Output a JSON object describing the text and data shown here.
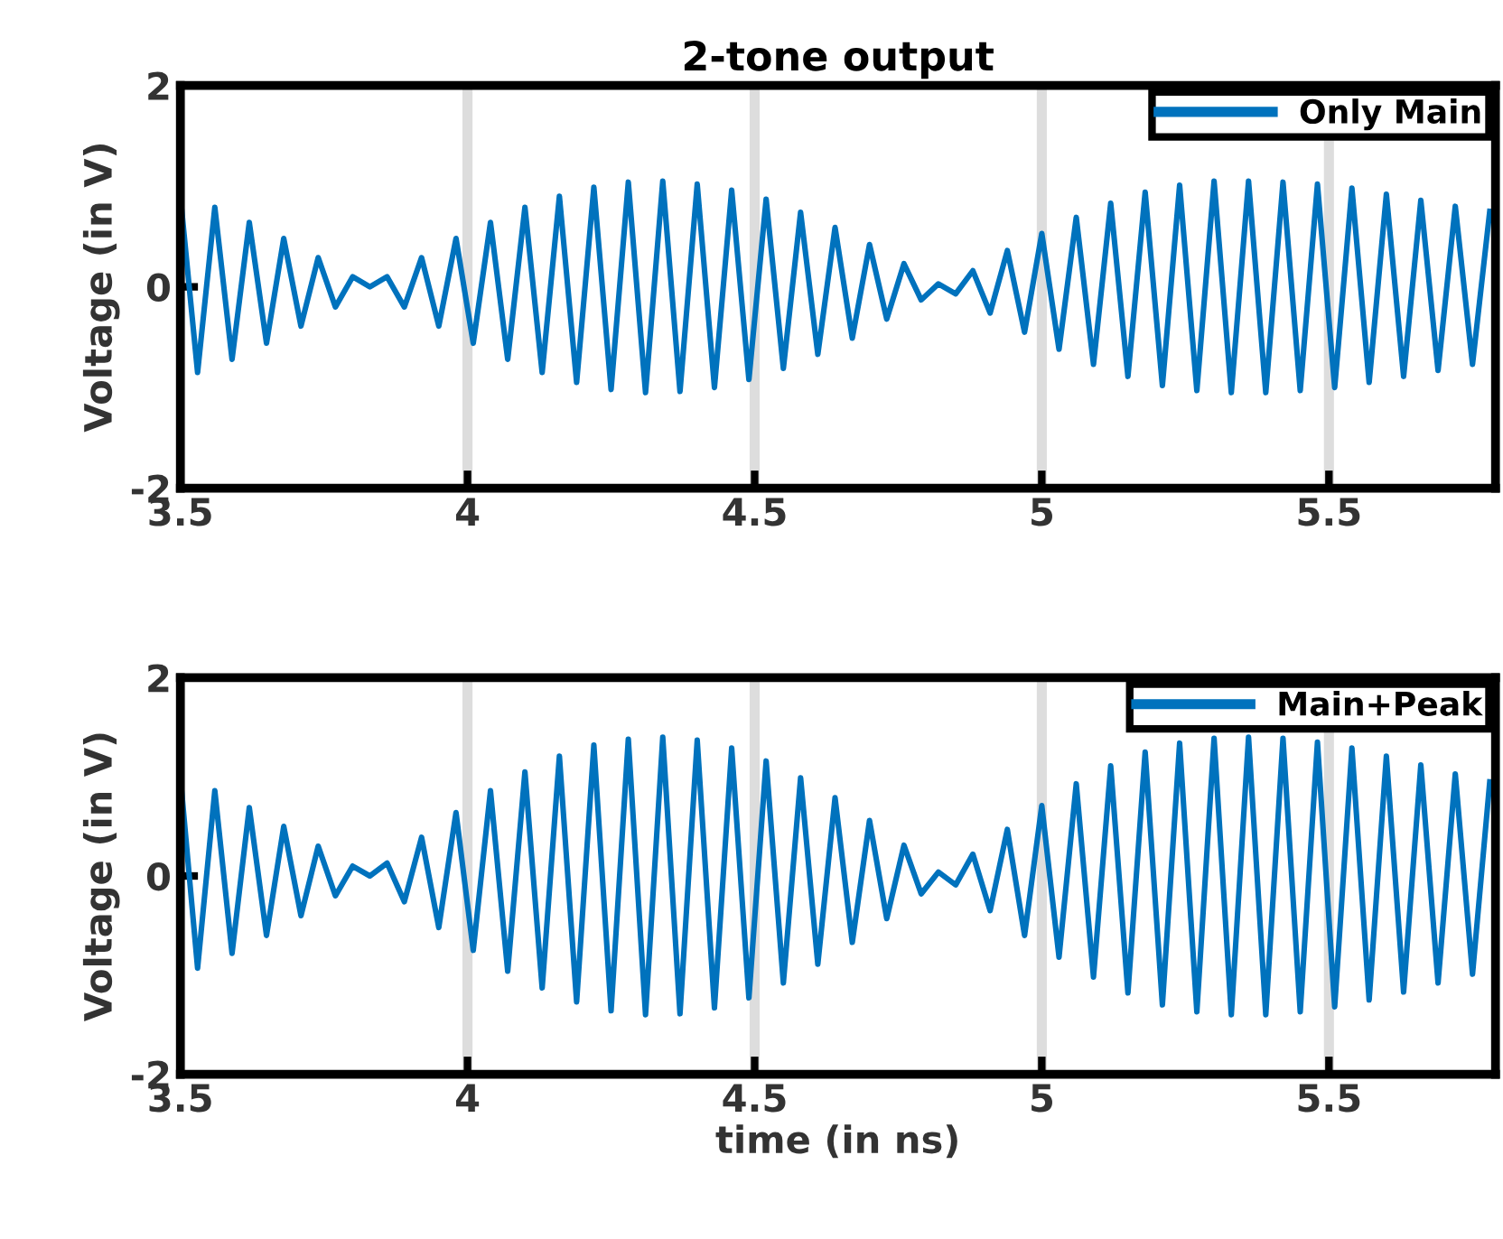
{
  "chart_data": [
    {
      "type": "line",
      "title": "2-tone output",
      "ylabel": "Voltage (in V)",
      "xlim": [
        3.5,
        5.79
      ],
      "xticks": [
        3.5,
        4,
        4.5,
        5,
        5.5
      ],
      "ylim": [
        -2,
        2
      ],
      "yticks": [
        -2,
        0,
        2
      ],
      "grid": "x",
      "legend": "top right",
      "x": [
        3.5,
        3.53,
        3.56,
        3.59,
        3.62,
        3.65,
        3.68,
        3.71,
        3.74,
        3.77,
        3.8,
        3.83,
        3.86,
        3.89,
        3.92,
        3.95,
        3.98,
        4.01,
        4.04,
        4.07,
        4.1,
        4.13,
        4.16,
        4.19,
        4.22,
        4.25,
        4.28,
        4.31,
        4.34,
        4.37,
        4.4,
        4.43,
        4.46,
        4.49,
        4.52,
        4.55,
        4.58,
        4.61,
        4.64,
        4.67,
        4.7,
        4.73,
        4.76,
        4.79,
        4.82,
        4.85,
        4.88,
        4.91,
        4.94,
        4.97,
        5.0,
        5.03,
        5.06,
        5.09,
        5.12,
        5.15,
        5.18,
        5.21,
        5.24,
        5.27,
        5.3,
        5.33,
        5.36,
        5.39,
        5.42,
        5.45,
        5.48,
        5.51,
        5.54,
        5.57,
        5.6,
        5.63,
        5.66,
        5.69,
        5.72,
        5.75,
        5.78
      ],
      "series": [
        {
          "name": "Only Main",
          "color": "#0072bd",
          "values": [
            0.9,
            -0.85,
            0.79,
            -0.72,
            0.64,
            -0.56,
            0.48,
            -0.39,
            0.29,
            -0.2,
            0.1,
            0.0,
            0.1,
            -0.2,
            0.29,
            -0.39,
            0.48,
            -0.56,
            0.64,
            -0.72,
            0.79,
            -0.85,
            0.9,
            -0.95,
            0.99,
            -1.02,
            1.04,
            -1.05,
            1.05,
            -1.04,
            1.02,
            -1.0,
            0.96,
            -0.92,
            0.87,
            -0.81,
            0.74,
            -0.67,
            0.59,
            -0.51,
            0.42,
            -0.32,
            0.23,
            -0.13,
            0.03,
            -0.07,
            0.16,
            -0.26,
            0.36,
            -0.45,
            0.53,
            -0.62,
            0.69,
            -0.77,
            0.83,
            -0.89,
            0.94,
            -0.98,
            1.01,
            -1.03,
            1.05,
            -1.05,
            1.05,
            -1.05,
            1.04,
            -1.03,
            1.02,
            -1.0,
            0.98,
            -0.95,
            0.92,
            -0.89,
            0.86,
            -0.83,
            0.8,
            -0.77,
            0.75
          ]
        }
      ]
    },
    {
      "type": "line",
      "xlabel": "time (in ns)",
      "ylabel": "Voltage (in V)",
      "xlim": [
        3.5,
        5.79
      ],
      "xticks": [
        3.5,
        4,
        4.5,
        5,
        5.5
      ],
      "ylim": [
        -2,
        2
      ],
      "yticks": [
        -2,
        0,
        2
      ],
      "grid": "x",
      "legend": "top right",
      "x": [
        3.5,
        3.53,
        3.56,
        3.59,
        3.62,
        3.65,
        3.68,
        3.71,
        3.74,
        3.77,
        3.8,
        3.83,
        3.86,
        3.89,
        3.92,
        3.95,
        3.98,
        4.01,
        4.04,
        4.07,
        4.1,
        4.13,
        4.16,
        4.19,
        4.22,
        4.25,
        4.28,
        4.31,
        4.34,
        4.37,
        4.4,
        4.43,
        4.46,
        4.49,
        4.52,
        4.55,
        4.58,
        4.61,
        4.64,
        4.67,
        4.7,
        4.73,
        4.76,
        4.79,
        4.82,
        4.85,
        4.88,
        4.91,
        4.94,
        4.97,
        5.0,
        5.03,
        5.06,
        5.09,
        5.12,
        5.15,
        5.18,
        5.21,
        5.24,
        5.27,
        5.3,
        5.33,
        5.36,
        5.39,
        5.42,
        5.45,
        5.48,
        5.51,
        5.54,
        5.57,
        5.6,
        5.63,
        5.66,
        5.69,
        5.72,
        5.75,
        5.78
      ],
      "series": [
        {
          "name": "Main+Peak",
          "color": "#0072bd",
          "values": [
            1.0,
            -0.93,
            0.86,
            -0.78,
            0.69,
            -0.6,
            0.5,
            -0.4,
            0.3,
            -0.2,
            0.1,
            0.0,
            0.13,
            -0.26,
            0.39,
            -0.52,
            0.64,
            -0.75,
            0.86,
            -0.96,
            1.05,
            -1.13,
            1.21,
            -1.27,
            1.32,
            -1.36,
            1.38,
            -1.4,
            1.4,
            -1.39,
            1.37,
            -1.33,
            1.29,
            -1.23,
            1.16,
            -1.08,
            0.99,
            -0.89,
            0.79,
            -0.67,
            0.56,
            -0.43,
            0.31,
            -0.18,
            0.04,
            -0.09,
            0.22,
            -0.35,
            0.47,
            -0.6,
            0.71,
            -0.82,
            0.93,
            -1.02,
            1.11,
            -1.18,
            1.25,
            -1.3,
            1.34,
            -1.37,
            1.39,
            -1.4,
            1.4,
            -1.4,
            1.39,
            -1.37,
            1.35,
            -1.32,
            1.29,
            -1.25,
            1.21,
            -1.17,
            1.12,
            -1.08,
            1.03,
            -0.99,
            0.95
          ]
        }
      ]
    }
  ]
}
